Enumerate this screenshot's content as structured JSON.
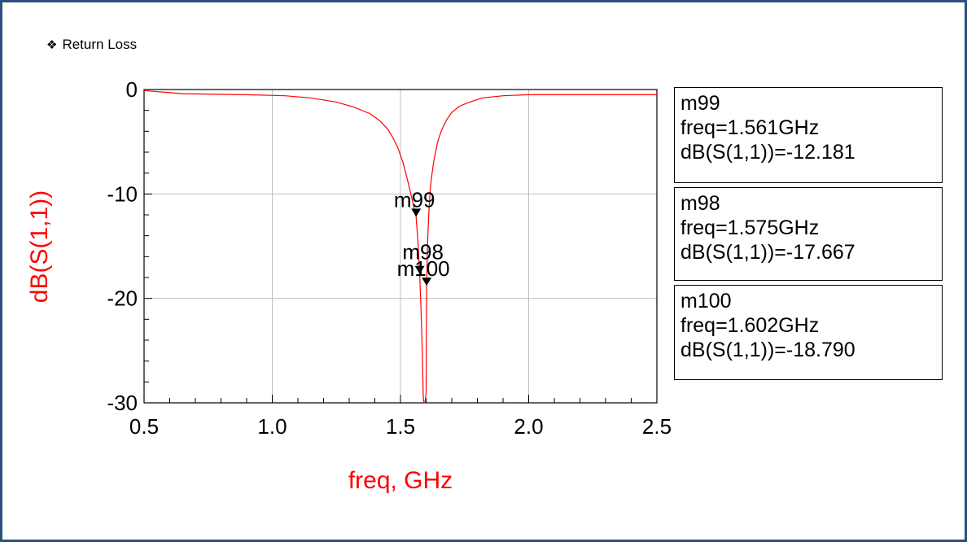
{
  "heading": {
    "bullet": "❖",
    "title": "Return Loss"
  },
  "colors": {
    "trace": "#ff0000",
    "axis_label": "#ff0000",
    "frame": "#2b4f7e",
    "grid": "#c0c0c0"
  },
  "chart_data": {
    "type": "line",
    "xlabel": "freq, GHz",
    "ylabel": "dB(S(1,1))",
    "xlim": [
      0.5,
      2.5
    ],
    "ylim": [
      -30,
      0
    ],
    "xticks": [
      "0.5",
      "1.0",
      "1.5",
      "2.0",
      "2.5"
    ],
    "yticks": [
      "0",
      "-10",
      "-20",
      "-30"
    ],
    "grid": true,
    "series": [
      {
        "x": [
          0.5,
          0.65,
          0.9,
          1.05,
          1.15,
          1.25,
          1.32,
          1.38,
          1.42,
          1.45,
          1.47,
          1.49,
          1.51,
          1.53,
          1.545,
          1.555,
          1.561,
          1.568,
          1.575,
          1.58,
          1.585,
          1.589,
          1.592,
          1.596,
          1.6,
          1.602,
          1.606,
          1.61,
          1.615,
          1.62,
          1.63,
          1.645,
          1.66,
          1.68,
          1.7,
          1.73,
          1.77,
          1.82,
          1.9,
          2.0,
          2.2,
          2.5
        ],
        "y": [
          -0.1,
          -0.4,
          -0.5,
          -0.6,
          -0.8,
          -1.2,
          -1.7,
          -2.3,
          -3.0,
          -3.8,
          -4.6,
          -5.6,
          -7.0,
          -8.9,
          -10.5,
          -11.5,
          -12.181,
          -14.5,
          -17.667,
          -21.0,
          -25.0,
          -29.5,
          -30.0,
          -30.0,
          -29.0,
          -18.79,
          -14.5,
          -12.0,
          -10.0,
          -8.6,
          -6.8,
          -5.0,
          -3.9,
          -2.9,
          -2.2,
          -1.6,
          -1.2,
          -0.8,
          -0.6,
          -0.5,
          -0.5,
          -0.5
        ]
      }
    ],
    "markers": [
      {
        "name": "m99",
        "freq": 1.561,
        "db": -12.181,
        "freq_text": "freq=1.561GHz",
        "db_text": "dB(S(1,1))=-12.181"
      },
      {
        "name": "m98",
        "freq": 1.575,
        "db": -17.667,
        "freq_text": "freq=1.575GHz",
        "db_text": "dB(S(1,1))=-17.667"
      },
      {
        "name": "m100",
        "freq": 1.602,
        "db": -18.79,
        "freq_text": "freq=1.602GHz",
        "db_text": "dB(S(1,1))=-18.790"
      }
    ]
  }
}
